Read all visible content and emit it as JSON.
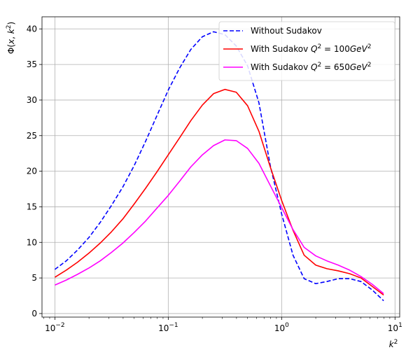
{
  "chart_data": {
    "type": "line",
    "xscale": "log",
    "xlabel": "k^2",
    "ylabel": "Φ(x, k^2)",
    "xlim": [
      0.0077,
      11.0
    ],
    "ylim": [
      -0.5,
      41.7
    ],
    "x_ticks": [
      {
        "value": 0.01,
        "base": "10",
        "exp": "−2"
      },
      {
        "value": 0.1,
        "base": "10",
        "exp": "−1"
      },
      {
        "value": 1,
        "base": "10",
        "exp": "0"
      },
      {
        "value": 10,
        "base": "10",
        "exp": "1"
      }
    ],
    "y_ticks": [
      0,
      5,
      10,
      15,
      20,
      25,
      30,
      35,
      40
    ],
    "grid": true,
    "legend_position": "top-right",
    "series": [
      {
        "name": "Without Sudakov",
        "color": "#0000ff",
        "dash": "dashed",
        "x": [
          0.01,
          0.0126,
          0.0158,
          0.02,
          0.0251,
          0.0316,
          0.0398,
          0.0501,
          0.0631,
          0.0794,
          0.1,
          0.126,
          0.158,
          0.2,
          0.251,
          0.316,
          0.398,
          0.501,
          0.631,
          0.794,
          1.0,
          1.26,
          1.58,
          2.0,
          2.51,
          3.16,
          3.98,
          5.01,
          6.31,
          7.94
        ],
        "y": [
          6.2,
          7.4,
          8.9,
          10.7,
          12.8,
          15.2,
          17.8,
          20.8,
          24.2,
          27.8,
          31.4,
          34.5,
          37.1,
          38.9,
          39.6,
          39.2,
          37.6,
          34.8,
          29.6,
          20.8,
          14.0,
          8.2,
          4.9,
          4.2,
          4.5,
          4.9,
          4.9,
          4.5,
          3.3,
          1.8
        ]
      },
      {
        "name": "With Sudakov Q^2=100GeV^2",
        "color": "#ff0000",
        "dash": "solid",
        "x": [
          0.01,
          0.0126,
          0.0158,
          0.02,
          0.0251,
          0.0316,
          0.0398,
          0.0501,
          0.0631,
          0.0794,
          0.1,
          0.126,
          0.158,
          0.2,
          0.251,
          0.316,
          0.398,
          0.501,
          0.631,
          0.794,
          1.0,
          1.26,
          1.58,
          2.0,
          2.51,
          3.16,
          3.98,
          5.01,
          6.31,
          7.94
        ],
        "y": [
          5.1,
          6.1,
          7.2,
          8.5,
          9.9,
          11.5,
          13.3,
          15.4,
          17.6,
          19.9,
          22.3,
          24.7,
          27.1,
          29.3,
          30.9,
          31.5,
          31.1,
          29.2,
          25.6,
          20.6,
          15.9,
          11.7,
          8.2,
          6.8,
          6.3,
          6.0,
          5.6,
          5.0,
          3.8,
          2.6
        ]
      },
      {
        "name": "With Sudakov Q^2=650GeV^2",
        "color": "#ff00ff",
        "dash": "solid",
        "x": [
          0.01,
          0.0126,
          0.0158,
          0.02,
          0.0251,
          0.0316,
          0.0398,
          0.0501,
          0.0631,
          0.0794,
          0.1,
          0.126,
          0.158,
          0.2,
          0.251,
          0.316,
          0.398,
          0.501,
          0.631,
          0.794,
          1.0,
          1.26,
          1.58,
          2.0,
          2.51,
          3.16,
          3.98,
          5.01,
          6.31,
          7.94
        ],
        "y": [
          4.0,
          4.7,
          5.5,
          6.4,
          7.4,
          8.6,
          9.9,
          11.4,
          13.0,
          14.8,
          16.6,
          18.6,
          20.6,
          22.3,
          23.6,
          24.4,
          24.3,
          23.2,
          21.1,
          18.0,
          14.9,
          11.8,
          9.3,
          8.1,
          7.4,
          6.8,
          6.1,
          5.2,
          4.1,
          2.8
        ]
      }
    ]
  }
}
